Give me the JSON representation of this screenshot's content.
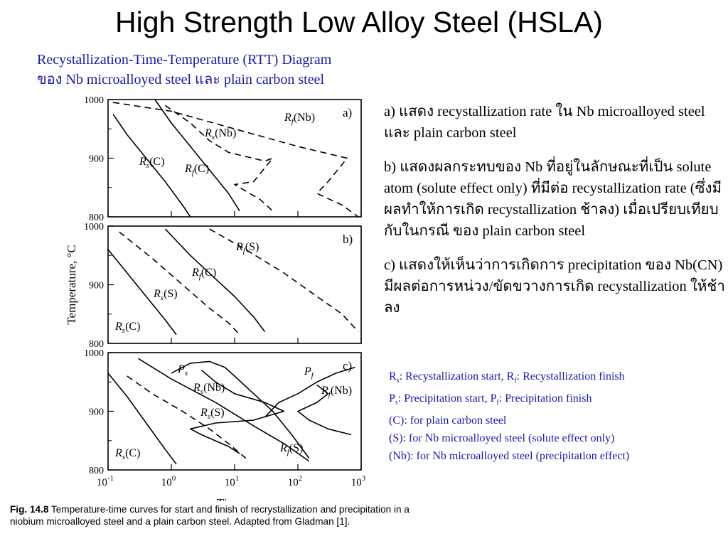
{
  "slide": {
    "title": "High Strength Low Alloy Steel (HSLA)",
    "subtitle_line1": "Recystallization-Time-Temperature (RTT) Diagram",
    "subtitle_line2": "ของ Nb microalloyed steel และ plain carbon steel"
  },
  "notes": {
    "a": "a) แสดง recystallization rate ใน Nb microalloyed steel และ plain carbon steel",
    "b": "b) แสดงผลกระทบของ Nb ที่อยู่ในลักษณะที่เป็น solute atom (solute effect only) ที่มีต่อ recystallization rate (ซึ่งมีผลทำให้การเกิด recystallization ช้าลง) เมื่อเปรียบเทียบกับในกรณี ของ plain carbon steel",
    "c": "c) แสดงให้เห็นว่าการเกิดการ precipitation ของ Nb(CN) มีผลต่อการหน่วง/ขัดขวางการเกิด recystallization ให้ช้าลง"
  },
  "legend": {
    "r_main1": "R",
    "r_sub1": "s",
    "r_text1": ": Recystallization start, R",
    "r_sub2": "f",
    "r_text2": ": Recystallization finish",
    "p_main1": "P",
    "p_sub1": "s",
    "p_text1": ": Precipitation start, P",
    "p_sub2": "f",
    "p_text2": ": Precipitation finish",
    "c_line": "(C): for plain carbon steel",
    "s_line": "(S): for Nb microalloyed steel (solute effect only)",
    "nb_line": "(Nb): for Nb microalloyed steel (precipitation effect)"
  },
  "caption": {
    "fig_label": "Fig. 14.8",
    "text": " Temperature-time curves for start and finish of recrystallization and precipitation in a niobium microalloyed steel and a plain carbon steel. Adapted from Gladman [1]."
  },
  "chart_data": {
    "type": "line",
    "x_scale": "log",
    "xlim": [
      0.1,
      1000
    ],
    "ylim": [
      800,
      1000
    ],
    "xlabel": "Time, s",
    "ylabel": "Temperature, °C",
    "x_ticks": [
      "10",
      "10",
      "10",
      "10",
      "10"
    ],
    "x_tick_exps": [
      "-1",
      "0",
      "1",
      "2",
      "3"
    ],
    "y_ticks": [
      "1000",
      "900",
      "800"
    ],
    "panels": [
      {
        "label": "a)",
        "curve_labels": [
          "Rf(Nb)",
          "Rs(Nb)",
          "Rs(C)",
          "Rf(C)"
        ],
        "series": [
          {
            "name": "Rs(C)",
            "style": "solid",
            "points": [
              [
                0.12,
                975
              ],
              [
                0.2,
                940
              ],
              [
                0.4,
                900
              ],
              [
                0.8,
                860
              ],
              [
                1.5,
                820
              ],
              [
                2,
                800
              ]
            ]
          },
          {
            "name": "Rf(C)",
            "style": "solid",
            "points": [
              [
                0.55,
                1000
              ],
              [
                1,
                960
              ],
              [
                2,
                920
              ],
              [
                4,
                880
              ],
              [
                8,
                840
              ],
              [
                12,
                810
              ]
            ]
          },
          {
            "name": "Rs(Nb)",
            "style": "dashed",
            "points": [
              [
                0.8,
                990
              ],
              [
                2,
                960
              ],
              [
                4,
                930
              ],
              [
                8,
                910
              ],
              [
                30,
                895
              ],
              [
                40,
                900
              ],
              [
                20,
                860
              ],
              [
                10,
                855
              ],
              [
                25,
                830
              ],
              [
                40,
                810
              ]
            ]
          },
          {
            "name": "Rf(Nb)",
            "style": "dashed",
            "points": [
              [
                0.12,
                995
              ],
              [
                1,
                980
              ],
              [
                10,
                950
              ],
              [
                100,
                920
              ],
              [
                600,
                900
              ],
              [
                300,
                860
              ],
              [
                200,
                840
              ],
              [
                500,
                820
              ],
              [
                900,
                800
              ]
            ]
          }
        ]
      },
      {
        "label": "b)",
        "curve_labels": [
          "Rf(S)",
          "Rf(C)",
          "Rs(S)",
          "Rs(C)"
        ],
        "series": [
          {
            "name": "Rs(C)",
            "style": "solid",
            "points": [
              [
                0.1,
                960
              ],
              [
                0.2,
                920
              ],
              [
                0.4,
                880
              ],
              [
                0.8,
                840
              ],
              [
                1.2,
                815
              ]
            ]
          },
          {
            "name": "Rs(S)",
            "style": "dashed",
            "points": [
              [
                0.15,
                990
              ],
              [
                0.5,
                945
              ],
              [
                1.5,
                900
              ],
              [
                4,
                860
              ],
              [
                8,
                835
              ],
              [
                12,
                815
              ]
            ]
          },
          {
            "name": "Rf(C)",
            "style": "solid",
            "points": [
              [
                0.8,
                995
              ],
              [
                2,
                950
              ],
              [
                5,
                910
              ],
              [
                10,
                880
              ],
              [
                20,
                845
              ],
              [
                30,
                820
              ]
            ]
          },
          {
            "name": "Rf(S)",
            "style": "dashed",
            "points": [
              [
                4,
                995
              ],
              [
                15,
                960
              ],
              [
                60,
                920
              ],
              [
                200,
                880
              ],
              [
                500,
                850
              ],
              [
                900,
                820
              ]
            ]
          }
        ]
      },
      {
        "label": "c)",
        "curve_labels": [
          "Ps",
          "Pf",
          "Rs(Nb)",
          "Rf(Nb)",
          "Rs(S)",
          "Rf(S)",
          "Rs(C)"
        ],
        "series": [
          {
            "name": "Rs(C)",
            "style": "solid",
            "points": [
              [
                0.1,
                965
              ],
              [
                0.2,
                925
              ],
              [
                0.4,
                880
              ],
              [
                0.8,
                835
              ],
              [
                1.2,
                810
              ]
            ]
          },
          {
            "name": "Rs(S)",
            "style": "dashed",
            "points": [
              [
                0.2,
                960
              ],
              [
                0.5,
                930
              ],
              [
                1.5,
                900
              ],
              [
                4,
                870
              ],
              [
                8,
                845
              ],
              [
                15,
                820
              ]
            ]
          },
          {
            "name": "Rf(S)",
            "style": "solid",
            "points": [
              [
                0.3,
                990
              ],
              [
                1,
                955
              ],
              [
                5,
                915
              ],
              [
                20,
                875
              ],
              [
                60,
                845
              ],
              [
                150,
                815
              ]
            ]
          },
          {
            "name": "Rs(Nb)",
            "style": "solid",
            "points": [
              [
                3,
                970
              ],
              [
                5,
                950
              ],
              [
                10,
                930
              ],
              [
                30,
                915
              ],
              [
                60,
                900
              ],
              [
                20,
                885
              ],
              [
                5,
                880
              ],
              [
                2,
                870
              ],
              [
                3,
                860
              ],
              [
                8,
                840
              ],
              [
                12,
                828
              ]
            ]
          },
          {
            "name": "Rf(Nb)",
            "style": "solid",
            "points": [
              [
                200,
                945
              ],
              [
                300,
                930
              ],
              [
                200,
                915
              ],
              [
                100,
                900
              ],
              [
                150,
                885
              ],
              [
                300,
                870
              ],
              [
                700,
                860
              ]
            ]
          },
          {
            "name": "Ps",
            "style": "solid",
            "points": [
              [
                1,
                965
              ],
              [
                2,
                982
              ],
              [
                4,
                985
              ],
              [
                7,
                975
              ],
              [
                10,
                960
              ],
              [
                20,
                930
              ],
              [
                40,
                900
              ],
              [
                80,
                860
              ],
              [
                150,
                820
              ]
            ]
          },
          {
            "name": "Pf",
            "style": "solid",
            "points": [
              [
                30,
                890
              ],
              [
                50,
                915
              ],
              [
                100,
                930
              ],
              [
                200,
                950
              ],
              [
                400,
                965
              ],
              [
                800,
                975
              ]
            ]
          }
        ]
      }
    ]
  }
}
